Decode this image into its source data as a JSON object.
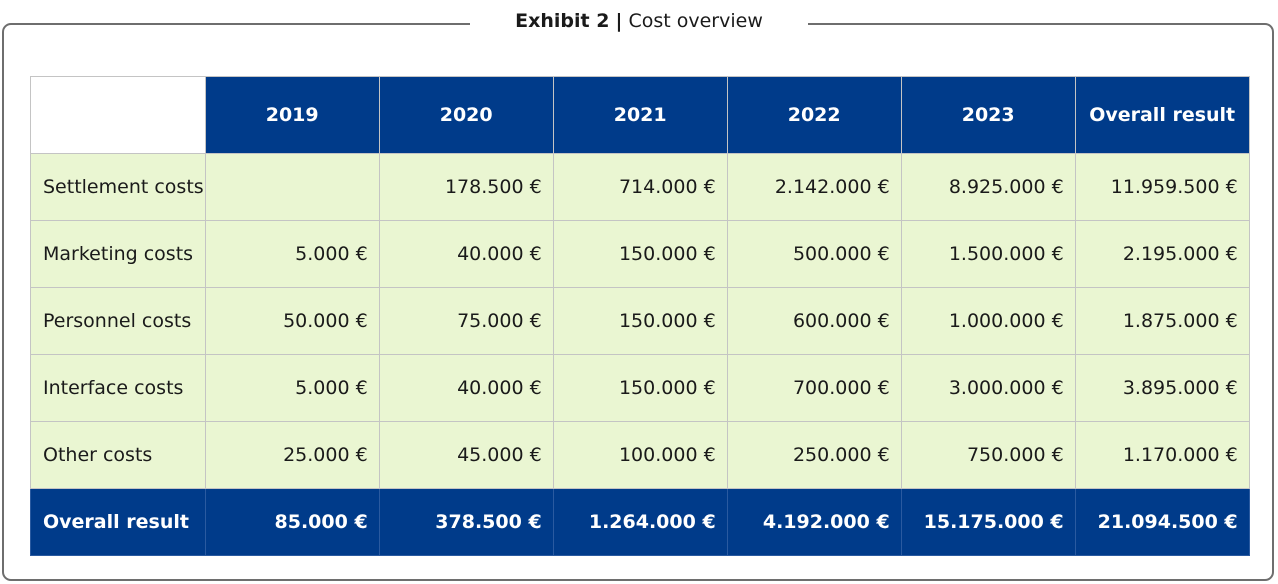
{
  "exhibit": {
    "label": "Exhibit 2",
    "separator": "|",
    "title": "Cost overview"
  },
  "table": {
    "columns": [
      "2019",
      "2020",
      "2021",
      "2022",
      "2023",
      "Overall result"
    ],
    "rows": [
      {
        "label": "Settlement costs",
        "values": [
          "",
          "178.500 €",
          "714.000 €",
          "2.142.000 €",
          "8.925.000 €",
          "11.959.500 €"
        ]
      },
      {
        "label": "Marketing costs",
        "values": [
          "5.000 €",
          "40.000 €",
          "150.000 €",
          "500.000 €",
          "1.500.000 €",
          "2.195.000 €"
        ]
      },
      {
        "label": "Personnel costs",
        "values": [
          "50.000 €",
          "75.000 €",
          "150.000 €",
          "600.000 €",
          "1.000.000 €",
          "1.875.000 €"
        ]
      },
      {
        "label": "Interface costs",
        "values": [
          "5.000 €",
          "40.000 €",
          "150.000 €",
          "700.000 €",
          "3.000.000 €",
          "3.895.000 €"
        ]
      },
      {
        "label": "Other costs",
        "values": [
          "25.000 €",
          "45.000 €",
          "100.000 €",
          "250.000 €",
          "750.000 €",
          "1.170.000 €"
        ]
      }
    ],
    "total": {
      "label": "Overall result",
      "values": [
        "85.000 €",
        "378.500 €",
        "1.264.000 €",
        "4.192.000 €",
        "15.175.000 €",
        "21.094.500 €"
      ]
    }
  },
  "colors": {
    "header_bg": "#003b8a",
    "body_bg": "#eaf6d2",
    "grid_line": "#c4c4c4"
  }
}
